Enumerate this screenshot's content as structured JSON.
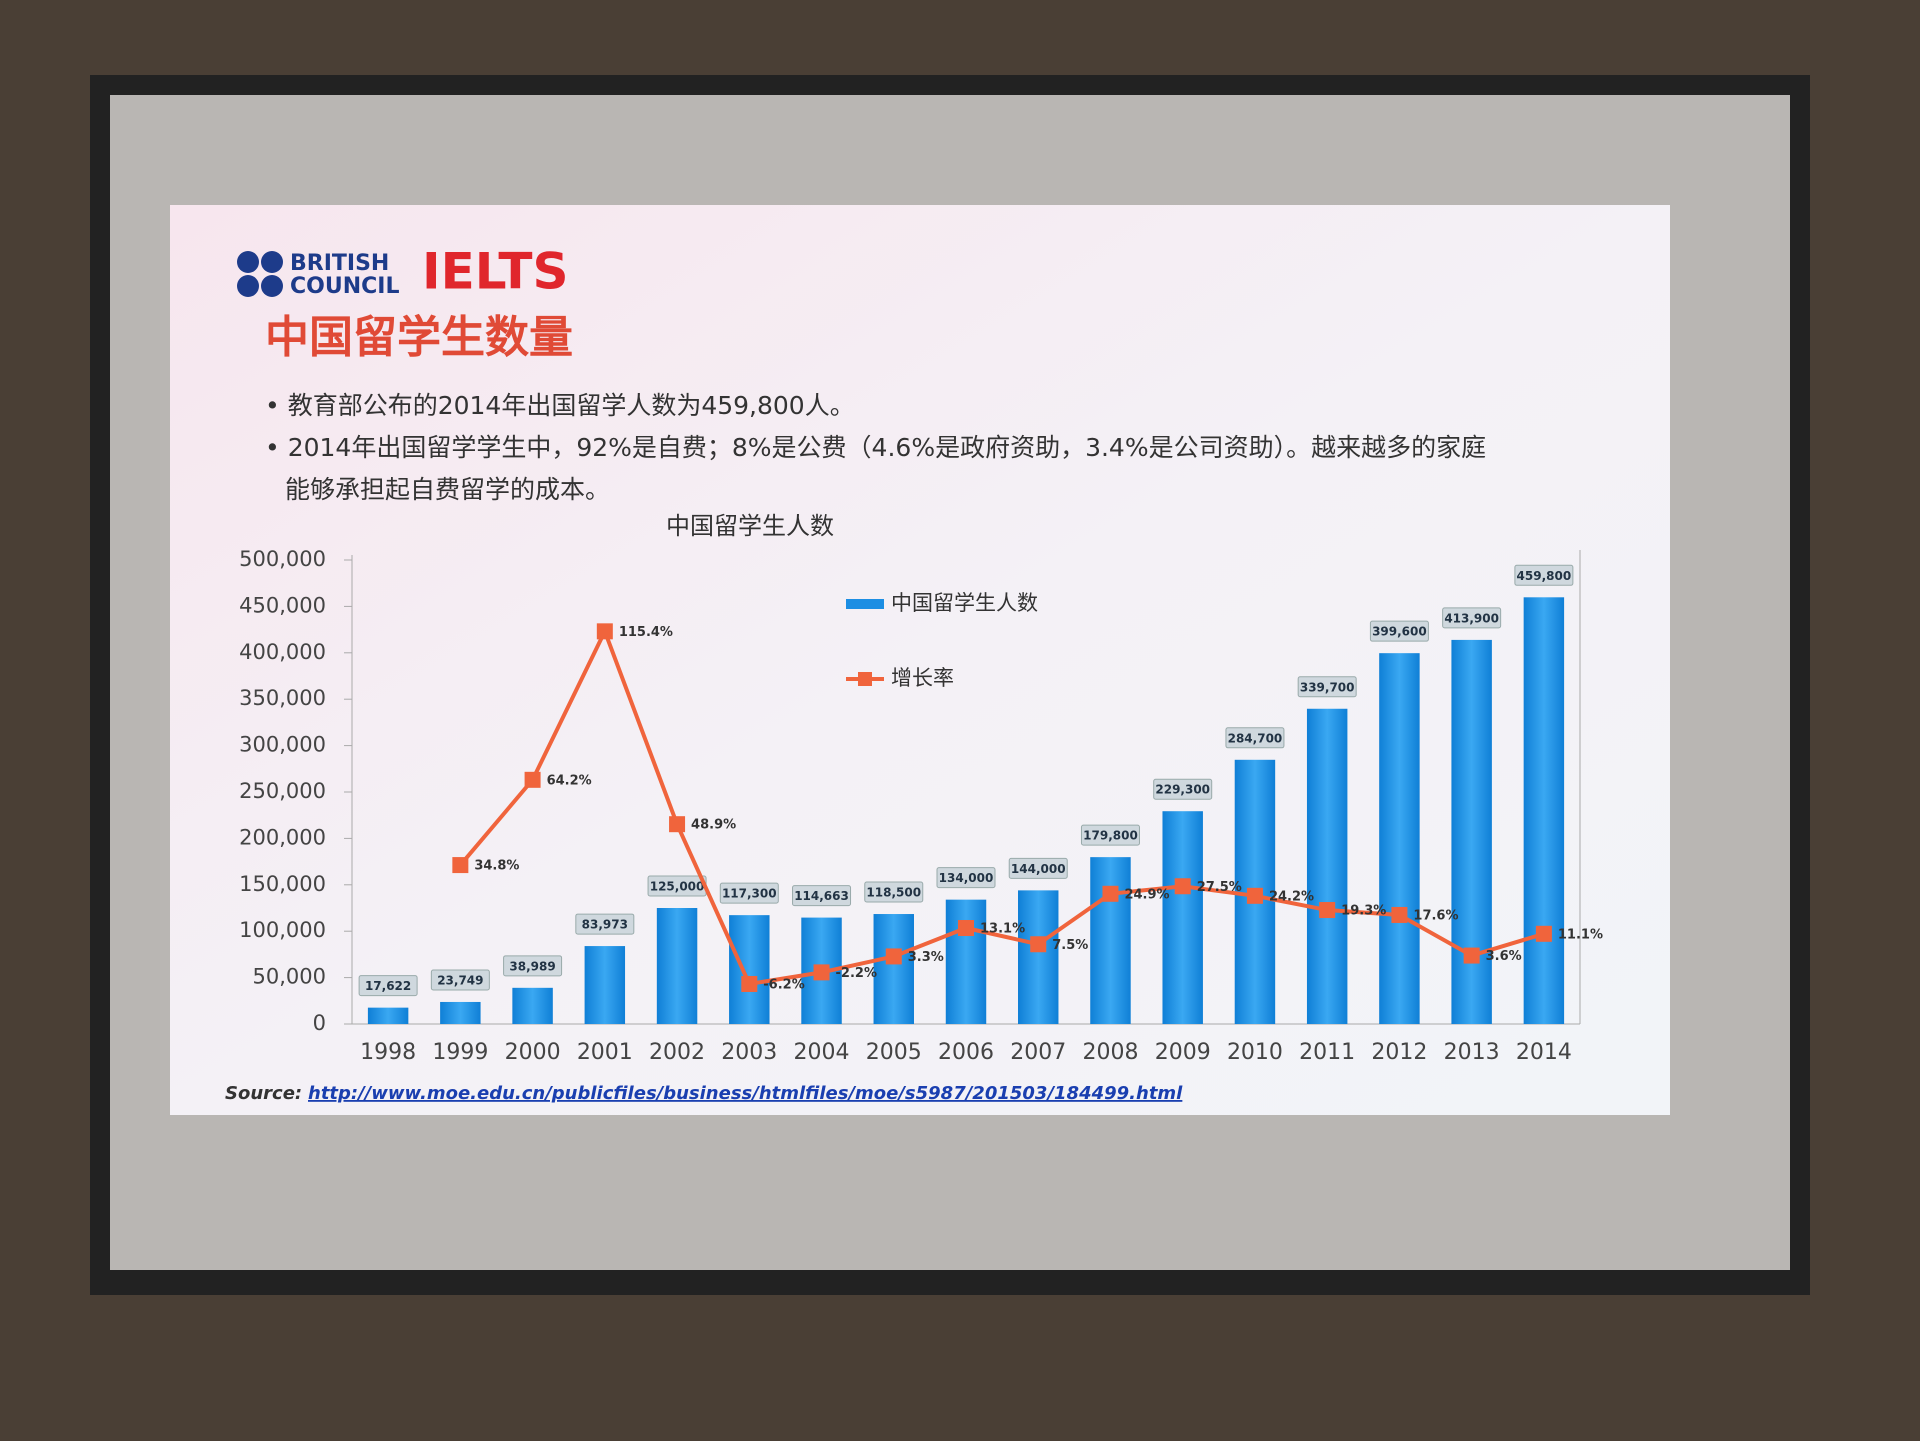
{
  "slide": {
    "logo": {
      "british": "BRITISH",
      "council": "COUNCIL",
      "ielts": "IELTS"
    },
    "title": "中国留学生数量",
    "bullets": [
      "教育部公布的2014年出国留学人数为459,800人。",
      "2014年出国留学学生中，92%是自费；8%是公费（4.6%是政府资助，3.4%是公司资助）。越来越多的家庭能够承担起自费留学的成本。"
    ],
    "source_label": "Source:",
    "source_url": "http://www.moe.edu.cn/publicfiles/business/htmlfiles/moe/s5987/201503/184499.html"
  },
  "chart_data": {
    "type": "bar-line",
    "title": "中国留学生人数",
    "categories": [
      "1998",
      "1999",
      "2000",
      "2001",
      "2002",
      "2003",
      "2004",
      "2005",
      "2006",
      "2007",
      "2008",
      "2009",
      "2010",
      "2011",
      "2012",
      "2013",
      "2014"
    ],
    "series": [
      {
        "name": "中国留学生人数",
        "type": "bar",
        "color": "#1c8ee3",
        "values": [
          17622,
          23749,
          38989,
          83973,
          125000,
          117300,
          114663,
          118500,
          134000,
          144000,
          179800,
          229300,
          284700,
          339700,
          399600,
          413900,
          459800
        ],
        "value_labels": [
          "17,622",
          "23,749",
          "38,989",
          "83,973",
          "125,000",
          "117,300",
          "114,663",
          "118,500",
          "134,000",
          "144,000",
          "179,800",
          "229,300",
          "284,700",
          "339,700",
          "399,600",
          "413,900",
          "459,800"
        ]
      },
      {
        "name": "增长率",
        "type": "line",
        "axis": "y2",
        "color": "#f0643c",
        "values": [
          null,
          34.8,
          64.2,
          115.4,
          48.9,
          -6.2,
          -2.2,
          3.3,
          13.1,
          7.5,
          24.9,
          27.5,
          24.2,
          19.3,
          17.6,
          3.6,
          11.1
        ],
        "value_labels": [
          null,
          "34.8%",
          "64.2%",
          "115.4%",
          "48.9%",
          "-6.2%",
          "-2.2%",
          "3.3%",
          "13.1%",
          "7.5%",
          "24.9%",
          "27.5%",
          "24.2%",
          "19.3%",
          "17.6%",
          "3.6%",
          "11.1%"
        ]
      }
    ],
    "ylim": [
      0,
      500000
    ],
    "yticks": [
      0,
      {
        "value": 50000,
        "label": "50,000"
      },
      {
        "value": 100000,
        "label": "100,000"
      },
      {
        "value": 150000,
        "label": "150,000"
      },
      {
        "value": 200000,
        "label": "200,000"
      },
      {
        "value": 250000,
        "label": "250,000"
      },
      {
        "value": 300000,
        "label": "300,000"
      },
      {
        "value": 350000,
        "label": "350,000"
      },
      {
        "value": 400000,
        "label": "400,000"
      },
      {
        "value": 450000,
        "label": "450,000"
      },
      {
        "value": 500000,
        "label": "500,000"
      }
    ],
    "y2lim": [
      -20,
      140
    ]
  }
}
